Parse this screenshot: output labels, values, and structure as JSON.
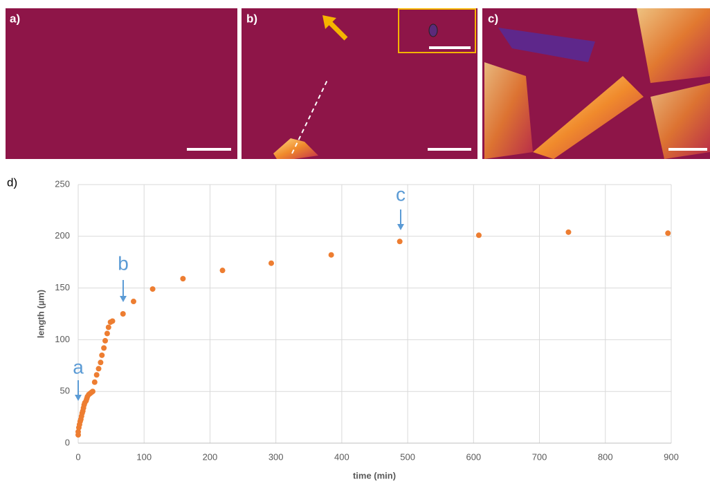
{
  "panel_labels": [
    "a)",
    "b)",
    "c)",
    "d)"
  ],
  "chart_data": {
    "type": "scatter",
    "x_label": "time (min)",
    "y_label": "length (µm)",
    "annotations": [
      "a",
      "b",
      "c"
    ],
    "color": "#ed7d31",
    "grid": true,
    "xlim": [
      0,
      900
    ],
    "ylim": [
      0,
      250
    ],
    "xticks": [
      0,
      100,
      200,
      300,
      400,
      500,
      600,
      700,
      800,
      900
    ],
    "yticks": [
      0,
      50,
      100,
      150,
      200,
      250
    ],
    "x": [
      0,
      0,
      1,
      2,
      3,
      4,
      5,
      6,
      7,
      8,
      9,
      10,
      12,
      13,
      14,
      16,
      18,
      20,
      22,
      25,
      28,
      31,
      34,
      36,
      39,
      41,
      44,
      46,
      49,
      52,
      68,
      84,
      113,
      159,
      219,
      293,
      384,
      488,
      608,
      744,
      895
    ],
    "values": [
      8,
      11,
      15,
      18,
      21,
      23,
      26,
      29,
      31,
      34,
      37,
      39,
      41,
      43,
      45,
      47,
      48,
      49,
      50,
      59,
      66,
      72,
      78,
      85,
      92,
      99,
      106,
      112,
      117,
      118,
      125,
      137,
      149,
      159,
      167,
      174,
      182,
      195,
      201,
      204,
      203
    ]
  }
}
